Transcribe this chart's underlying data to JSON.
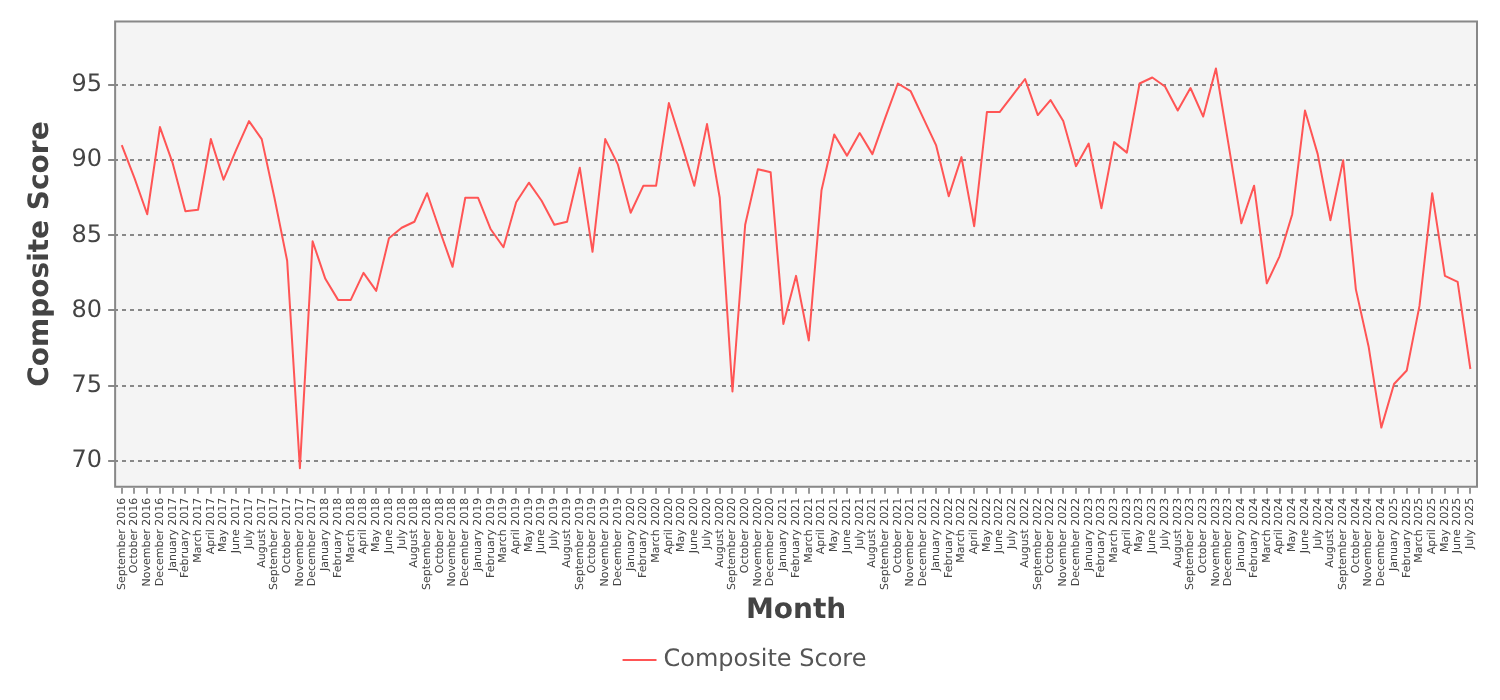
{
  "chart_data": {
    "type": "line",
    "xlabel": "Month",
    "ylabel": "Composite Score",
    "categories": [
      "September 2016",
      "October 2016",
      "November 2016",
      "December 2016",
      "January 2017",
      "February 2017",
      "March 2017",
      "April 2017",
      "May 2017",
      "June 2017",
      "July 2017",
      "August 2017",
      "September 2017",
      "October 2017",
      "November 2017",
      "December 2017",
      "January 2018",
      "February 2018",
      "March 2018",
      "April 2018",
      "May 2018",
      "June 2018",
      "July 2018",
      "August 2018",
      "September 2018",
      "October 2018",
      "November 2018",
      "December 2018",
      "January 2019",
      "February 2019",
      "March 2019",
      "April 2019",
      "May 2019",
      "June 2019",
      "July 2019",
      "August 2019",
      "September 2019",
      "October 2019",
      "November 2019",
      "December 2019",
      "January 2020",
      "February 2020",
      "March 2020",
      "April 2020",
      "May 2020",
      "June 2020",
      "July 2020",
      "August 2020",
      "September 2020",
      "October 2020",
      "November 2020",
      "December 2020",
      "January 2021",
      "February 2021",
      "March 2021",
      "April 2021",
      "May 2021",
      "June 2021",
      "July 2021",
      "August 2021",
      "September 2021",
      "October 2021",
      "November 2021",
      "December 2021",
      "January 2022",
      "February 2022",
      "March 2022",
      "April 2022",
      "May 2022",
      "June 2022",
      "July 2022",
      "August 2022",
      "September 2022",
      "October 2022",
      "November 2022",
      "December 2022",
      "January 2023",
      "February 2023",
      "March 2023",
      "April 2023",
      "May 2023",
      "June 2023",
      "July 2023",
      "August 2023",
      "September 2023",
      "October 2023",
      "November 2023",
      "December 2023",
      "January 2024",
      "February 2024",
      "March 2024",
      "April 2024",
      "May 2024",
      "June 2024",
      "July 2024",
      "August 2024",
      "September 2024",
      "October 2024",
      "November 2024",
      "December 2024",
      "January 2025",
      "February 2025",
      "March 2025",
      "April 2025",
      "May 2025",
      "June 2025",
      "July 2025"
    ],
    "series": [
      {
        "name": "Composite Score",
        "color": "#ff5555",
        "values": [
          91.0,
          88.8,
          86.4,
          92.2,
          89.8,
          86.6,
          86.7,
          91.4,
          88.7,
          90.7,
          92.6,
          91.4,
          87.5,
          83.3,
          69.5,
          84.6,
          82.1,
          80.7,
          80.7,
          82.5,
          81.3,
          84.8,
          85.5,
          85.9,
          87.8,
          85.3,
          82.9,
          87.5,
          87.5,
          85.4,
          84.2,
          87.2,
          88.5,
          87.3,
          85.7,
          85.9,
          89.5,
          83.9,
          91.4,
          89.7,
          86.5,
          88.3,
          88.3,
          93.8,
          91.1,
          88.3,
          92.4,
          87.5,
          74.6,
          85.7,
          89.4,
          89.2,
          79.1,
          82.3,
          78.0,
          88.0,
          91.7,
          90.3,
          91.8,
          90.4,
          92.8,
          95.1,
          94.6,
          92.8,
          91.0,
          87.6,
          90.2,
          85.6,
          93.2,
          93.2,
          94.3,
          95.4,
          93.0,
          94.0,
          92.6,
          89.6,
          91.1,
          86.8,
          91.2,
          90.5,
          95.1,
          95.5,
          94.9,
          93.3,
          94.8,
          92.9,
          96.1,
          91.0,
          85.8,
          88.3,
          81.8,
          83.6,
          86.4,
          93.3,
          90.4,
          86.0,
          90.0,
          81.4,
          77.6,
          72.2,
          75.1,
          76.0,
          80.3,
          87.8,
          82.3,
          81.9,
          76.1
        ]
      }
    ],
    "ylim": [
      68.2,
      99.3
    ],
    "yticks": [
      70,
      75,
      80,
      85,
      90,
      95
    ],
    "grid": "y",
    "legend": "bottom",
    "marker": "none",
    "line_style": "solid"
  }
}
